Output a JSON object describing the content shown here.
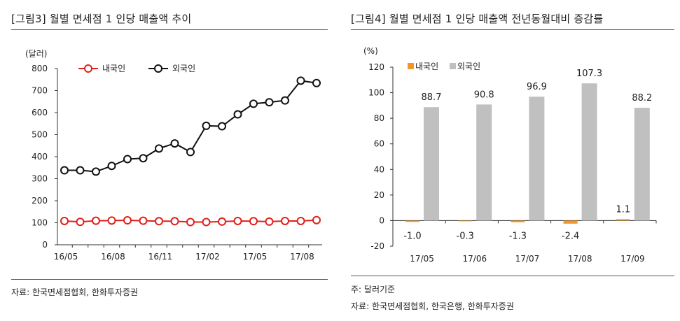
{
  "left": {
    "title": "[그림3]   월별 면세점 1 인당 매출액 추이",
    "source": "자료: 한국면세점협회, 한화투자증권"
  },
  "right": {
    "title": "[그림4]   월별 면세점 1 인당 매출액 전년동월대비 증감률",
    "note": "주: 달러기준",
    "source": "자료: 한국면세점협회, 한국은행, 한화투자증권"
  },
  "chart_data": [
    {
      "type": "line",
      "unit_label": "(달러)",
      "ylim": [
        0,
        800
      ],
      "yticks": [
        0,
        100,
        200,
        300,
        400,
        500,
        600,
        700,
        800
      ],
      "xtick_labels": [
        "16/05",
        "16/08",
        "16/11",
        "17/02",
        "17/05",
        "17/08"
      ],
      "x": [
        "16/05",
        "16/06",
        "16/07",
        "16/08",
        "16/09",
        "16/10",
        "16/11",
        "16/12",
        "17/01",
        "17/02",
        "17/03",
        "17/04",
        "17/05",
        "17/06",
        "17/07",
        "17/08",
        "17/09"
      ],
      "legend_position": "top-left",
      "grid": false,
      "series": [
        {
          "name": "내국인",
          "color": "#e0201b",
          "values": [
            108,
            104,
            109,
            110,
            111,
            109,
            107,
            107,
            103,
            103,
            105,
            108,
            107,
            105,
            108,
            108,
            112
          ]
        },
        {
          "name": "외국인",
          "color": "#111111",
          "values": [
            338,
            338,
            332,
            358,
            389,
            393,
            437,
            460,
            421,
            540,
            538,
            592,
            640,
            647,
            655,
            745,
            734
          ]
        }
      ]
    },
    {
      "type": "bar",
      "unit_label": "(%)",
      "ylim": [
        -20,
        120
      ],
      "yticks": [
        -20,
        0,
        20,
        40,
        60,
        80,
        100,
        120
      ],
      "categories": [
        "17/05",
        "17/06",
        "17/07",
        "17/08",
        "17/09"
      ],
      "legend_position": "top-left",
      "grid": false,
      "series": [
        {
          "name": "내국인",
          "color": "#f0962a",
          "values": [
            -1.0,
            -0.3,
            -1.3,
            -2.4,
            1.1
          ],
          "labels": [
            "-1.0",
            "-0.3",
            "-1.3",
            "-2.4",
            "1.1"
          ]
        },
        {
          "name": "외국인",
          "color": "#c0c0c0",
          "values": [
            88.7,
            90.8,
            96.9,
            107.3,
            88.2
          ],
          "labels": [
            "88.7",
            "90.8",
            "96.9",
            "107.3",
            "88.2"
          ]
        }
      ]
    }
  ]
}
